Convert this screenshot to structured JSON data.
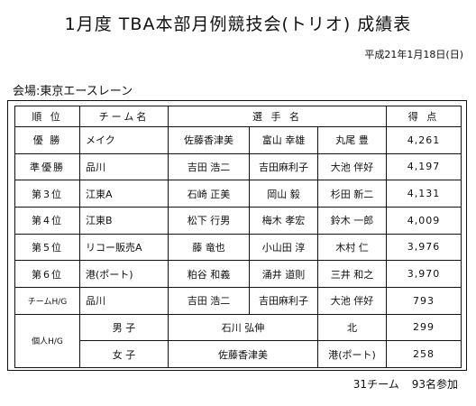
{
  "title": "1月度 TBA本部月例競技会(トリオ) 成績表",
  "date": "平成21年1月18日(日)",
  "venue": "会場:東京エースレーン",
  "headers": {
    "rank": "順 位",
    "team": "チーム名",
    "players": "選 手 名",
    "score": "得 点"
  },
  "rows": [
    {
      "rank": "優 勝",
      "team": "メイク",
      "players": [
        "佐藤香津美",
        "富山 幸雄",
        "丸尾 豊"
      ],
      "score": "4,261"
    },
    {
      "rank": "準優勝",
      "team": "品川",
      "players": [
        "吉田 浩二",
        "吉田麻利子",
        "大池 伴好"
      ],
      "score": "4,197"
    },
    {
      "rank": "第3位",
      "team": "江東A",
      "players": [
        "石崎 正美",
        "岡山 毅",
        "杉田 新二"
      ],
      "score": "4,131"
    },
    {
      "rank": "第4位",
      "team": "江東B",
      "players": [
        "松下 行男",
        "梅木 孝宏",
        "鈴木 一郎"
      ],
      "score": "4,009"
    },
    {
      "rank": "第5位",
      "team": "リコー販売A",
      "players": [
        "藤 竜也",
        "小山田 淳",
        "木村 仁"
      ],
      "score": "3,976"
    },
    {
      "rank": "第6位",
      "team": "港(ポート)",
      "players": [
        "粕谷 和義",
        "涌井 道則",
        "三井 和之"
      ],
      "score": "3,970"
    },
    {
      "rank": "チームH/G",
      "team": "品川",
      "players": [
        "吉田 浩二",
        "吉田麻利子",
        "大池 伴好"
      ],
      "score": "793"
    }
  ],
  "individual": {
    "label": "個人H/G",
    "rows": [
      {
        "gender": "男 子",
        "name": "石川 弘伸",
        "team": "北",
        "score": "299"
      },
      {
        "gender": "女 子",
        "name": "佐藤香津美",
        "team": "港(ポート)",
        "score": "258"
      }
    ]
  },
  "footer": {
    "teams": "31チーム",
    "participants": "93名参加"
  }
}
